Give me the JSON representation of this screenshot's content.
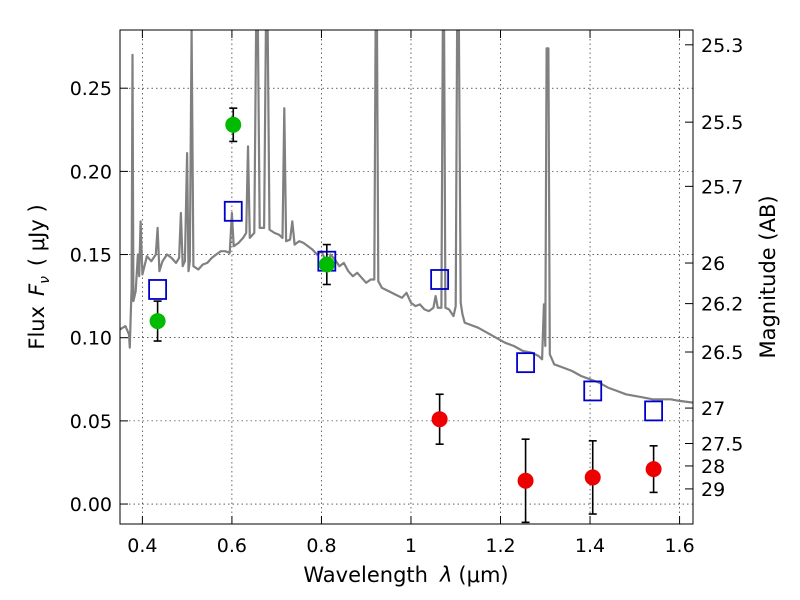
{
  "chart_data": {
    "type": "scatter",
    "x_label_prefix": "Wavelength",
    "x_label_symbol": "λ",
    "x_label_unit": "(μm)",
    "y_label_prefix": "Flux",
    "y_label_symbol": "F",
    "y_label_subscript": "ν",
    "y_label_unit": "( μJy )",
    "y2_label": "Magnitude (AB)",
    "xlim": [
      0.35,
      1.63
    ],
    "ylim": [
      -0.012,
      0.285
    ],
    "grid": true,
    "x_ticks": [
      {
        "value": 0.4,
        "label": "0.4"
      },
      {
        "value": 0.6,
        "label": "0.6"
      },
      {
        "value": 0.8,
        "label": "0.8"
      },
      {
        "value": 1.0,
        "label": "1"
      },
      {
        "value": 1.2,
        "label": "1.2"
      },
      {
        "value": 1.4,
        "label": "1.4"
      },
      {
        "value": 1.6,
        "label": "1.6"
      }
    ],
    "y_ticks": [
      {
        "value": 0.0,
        "label": "0.00"
      },
      {
        "value": 0.05,
        "label": "0.05"
      },
      {
        "value": 0.1,
        "label": "0.10"
      },
      {
        "value": 0.15,
        "label": "0.15"
      },
      {
        "value": 0.2,
        "label": "0.20"
      },
      {
        "value": 0.25,
        "label": "0.25"
      }
    ],
    "mag_ticks": [
      {
        "label": "25.3",
        "flux": 0.2761
      },
      {
        "label": "25.5",
        "flux": 0.2296
      },
      {
        "label": "25.7",
        "flux": 0.191
      },
      {
        "label": "26",
        "flux": 0.1449
      },
      {
        "label": "26.2",
        "flux": 0.1205
      },
      {
        "label": "26.5",
        "flux": 0.0914
      },
      {
        "label": "27",
        "flux": 0.0577
      },
      {
        "label": "27.5",
        "flux": 0.0364
      },
      {
        "label": "28",
        "flux": 0.0229
      },
      {
        "label": "29",
        "flux": 0.0091
      }
    ],
    "series": [
      {
        "name": "model_spectrum",
        "kind": "line",
        "color": "#808080",
        "points": [
          [
            0.35,
            0.105
          ],
          [
            0.362,
            0.107
          ],
          [
            0.37,
            0.102
          ],
          [
            0.372,
            0.094
          ],
          [
            0.374,
            0.113
          ],
          [
            0.376,
            0.13
          ],
          [
            0.378,
            0.27
          ],
          [
            0.38,
            0.122
          ],
          [
            0.385,
            0.128
          ],
          [
            0.39,
            0.15
          ],
          [
            0.393,
            0.137
          ],
          [
            0.396,
            0.17
          ],
          [
            0.4,
            0.138
          ],
          [
            0.41,
            0.149
          ],
          [
            0.42,
            0.146
          ],
          [
            0.43,
            0.15
          ],
          [
            0.434,
            0.166
          ],
          [
            0.438,
            0.14
          ],
          [
            0.445,
            0.146
          ],
          [
            0.455,
            0.15
          ],
          [
            0.465,
            0.148
          ],
          [
            0.475,
            0.145
          ],
          [
            0.482,
            0.148
          ],
          [
            0.486,
            0.175
          ],
          [
            0.49,
            0.143
          ],
          [
            0.495,
            0.146
          ],
          [
            0.5,
            0.211
          ],
          [
            0.503,
            0.14
          ],
          [
            0.506,
            0.146
          ],
          [
            0.51,
            0.285
          ],
          [
            0.514,
            0.143
          ],
          [
            0.525,
            0.141
          ],
          [
            0.535,
            0.144
          ],
          [
            0.545,
            0.145
          ],
          [
            0.555,
            0.148
          ],
          [
            0.565,
            0.15
          ],
          [
            0.575,
            0.152
          ],
          [
            0.585,
            0.152
          ],
          [
            0.595,
            0.151
          ],
          [
            0.6,
            0.175
          ],
          [
            0.604,
            0.155
          ],
          [
            0.615,
            0.157
          ],
          [
            0.625,
            0.16
          ],
          [
            0.632,
            0.163
          ],
          [
            0.636,
            0.215
          ],
          [
            0.64,
            0.16
          ],
          [
            0.65,
            0.163
          ],
          [
            0.654,
            0.285
          ],
          [
            0.658,
            0.285
          ],
          [
            0.662,
            0.166
          ],
          [
            0.672,
            0.166
          ],
          [
            0.676,
            0.285
          ],
          [
            0.68,
            0.285
          ],
          [
            0.684,
            0.165
          ],
          [
            0.695,
            0.163
          ],
          [
            0.705,
            0.162
          ],
          [
            0.713,
            0.16
          ],
          [
            0.717,
            0.238
          ],
          [
            0.721,
            0.158
          ],
          [
            0.73,
            0.159
          ],
          [
            0.735,
            0.17
          ],
          [
            0.74,
            0.156
          ],
          [
            0.75,
            0.158
          ],
          [
            0.76,
            0.157
          ],
          [
            0.77,
            0.155
          ],
          [
            0.78,
            0.153
          ],
          [
            0.79,
            0.15
          ],
          [
            0.8,
            0.152
          ],
          [
            0.81,
            0.146
          ],
          [
            0.815,
            0.141
          ],
          [
            0.82,
            0.15
          ],
          [
            0.83,
            0.147
          ],
          [
            0.84,
            0.143
          ],
          [
            0.85,
            0.145
          ],
          [
            0.86,
            0.14
          ],
          [
            0.87,
            0.137
          ],
          [
            0.88,
            0.139
          ],
          [
            0.89,
            0.136
          ],
          [
            0.9,
            0.133
          ],
          [
            0.91,
            0.135
          ],
          [
            0.918,
            0.135
          ],
          [
            0.921,
            0.285
          ],
          [
            0.924,
            0.285
          ],
          [
            0.927,
            0.134
          ],
          [
            0.935,
            0.13
          ],
          [
            0.95,
            0.128
          ],
          [
            0.965,
            0.126
          ],
          [
            0.98,
            0.124
          ],
          [
            0.99,
            0.127
          ],
          [
            1.0,
            0.121
          ],
          [
            1.01,
            0.119
          ],
          [
            1.02,
            0.12
          ],
          [
            1.03,
            0.117
          ],
          [
            1.04,
            0.116
          ],
          [
            1.05,
            0.118
          ],
          [
            1.055,
            0.125
          ],
          [
            1.06,
            0.118
          ],
          [
            1.068,
            0.118
          ],
          [
            1.071,
            0.285
          ],
          [
            1.074,
            0.285
          ],
          [
            1.077,
            0.118
          ],
          [
            1.085,
            0.117
          ],
          [
            1.095,
            0.113
          ],
          [
            1.1,
            0.119
          ],
          [
            1.103,
            0.285
          ],
          [
            1.107,
            0.285
          ],
          [
            1.111,
            0.121
          ],
          [
            1.115,
            0.114
          ],
          [
            1.12,
            0.109
          ],
          [
            1.13,
            0.108
          ],
          [
            1.15,
            0.106
          ],
          [
            1.17,
            0.103
          ],
          [
            1.19,
            0.1
          ],
          [
            1.21,
            0.097
          ],
          [
            1.23,
            0.095
          ],
          [
            1.25,
            0.092
          ],
          [
            1.27,
            0.091
          ],
          [
            1.285,
            0.089
          ],
          [
            1.293,
            0.087
          ],
          [
            1.297,
            0.12
          ],
          [
            1.3,
            0.095
          ],
          [
            1.303,
            0.274
          ],
          [
            1.307,
            0.274
          ],
          [
            1.31,
            0.09
          ],
          [
            1.32,
            0.084
          ],
          [
            1.34,
            0.082
          ],
          [
            1.36,
            0.08
          ],
          [
            1.38,
            0.077
          ],
          [
            1.4,
            0.075
          ],
          [
            1.42,
            0.073
          ],
          [
            1.44,
            0.07
          ],
          [
            1.46,
            0.068
          ],
          [
            1.48,
            0.066
          ],
          [
            1.5,
            0.065
          ],
          [
            1.52,
            0.064
          ],
          [
            1.54,
            0.063
          ],
          [
            1.56,
            0.063
          ],
          [
            1.58,
            0.063
          ],
          [
            1.6,
            0.062
          ],
          [
            1.63,
            0.061
          ]
        ]
      },
      {
        "name": "model_photometry",
        "kind": "scatter",
        "marker": "square",
        "color": "#0000cc",
        "x": [
          0.434,
          0.603,
          0.812,
          1.064,
          1.256,
          1.406,
          1.542
        ],
        "y": [
          0.129,
          0.176,
          0.146,
          0.135,
          0.085,
          0.068,
          0.056
        ]
      },
      {
        "name": "detections",
        "kind": "errorbar",
        "marker": "circle",
        "color": "#00bb00",
        "x": [
          0.434,
          0.603,
          0.812
        ],
        "y": [
          0.11,
          0.228,
          0.144
        ],
        "yerr": [
          0.012,
          0.01,
          0.012
        ]
      },
      {
        "name": "upper_limits",
        "kind": "errorbar",
        "marker": "circle",
        "color": "#ee0000",
        "x": [
          1.064,
          1.256,
          1.406,
          1.542
        ],
        "y": [
          0.051,
          0.014,
          0.016,
          0.021
        ],
        "yerr": [
          0.015,
          0.025,
          0.022,
          0.014
        ]
      }
    ]
  }
}
